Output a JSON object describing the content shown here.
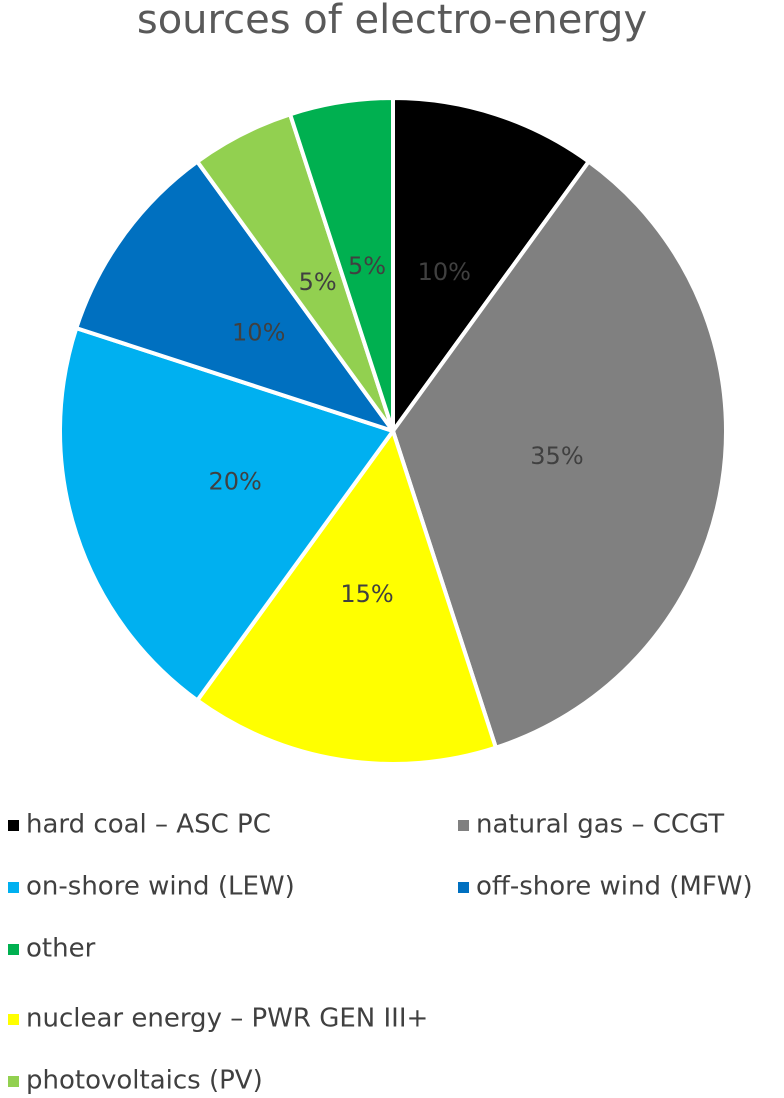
{
  "chart_data": {
    "type": "pie",
    "title": "sources of electro-energy",
    "categories": [
      "hard coal – ASC PC",
      "natural gas – CCGT",
      "nuclear energy – PWR GEN III+",
      "on-shore wind (LEW)",
      "off-shore wind (MFW)",
      "photovoltaics (PV)",
      "other"
    ],
    "values": [
      10,
      35,
      15,
      20,
      10,
      5,
      5
    ],
    "value_labels": [
      "10%",
      "35%",
      "15%",
      "20%",
      "10%",
      "5%",
      "5%"
    ],
    "colors": [
      "#000000",
      "#808080",
      "#ffff00",
      "#00b0f0",
      "#0070c0",
      "#92d050",
      "#00b050"
    ]
  }
}
